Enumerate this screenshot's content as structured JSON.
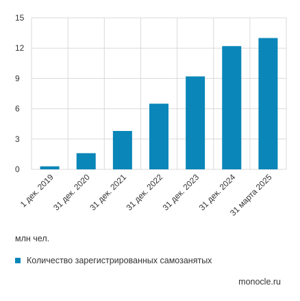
{
  "chart_data": {
    "type": "bar",
    "categories": [
      "1 дек. 2019",
      "31 дек. 2020",
      "31 дек. 2021",
      "31 дек. 2022",
      "31 дек. 2023",
      "31 дек. 2024",
      "31 марта 2025"
    ],
    "series": [
      {
        "name": "Количество зарегистрированных самозанятых",
        "values": [
          0.3,
          1.6,
          3.8,
          6.5,
          9.2,
          12.2,
          13.0
        ],
        "color": "#0a86b8"
      }
    ],
    "ylim": [
      0,
      15
    ],
    "yticks": [
      0,
      3,
      6,
      9,
      12,
      15
    ],
    "ylabel": "млн чел.",
    "grid": true,
    "legend": "bottom-left"
  },
  "legend_label": "Количество зарегистрированных самозанятых",
  "unit_label": "млн чел.",
  "source": "monocle.ru",
  "colors": {
    "bar": "#0a86b8",
    "grid": "#d9d9d9"
  }
}
